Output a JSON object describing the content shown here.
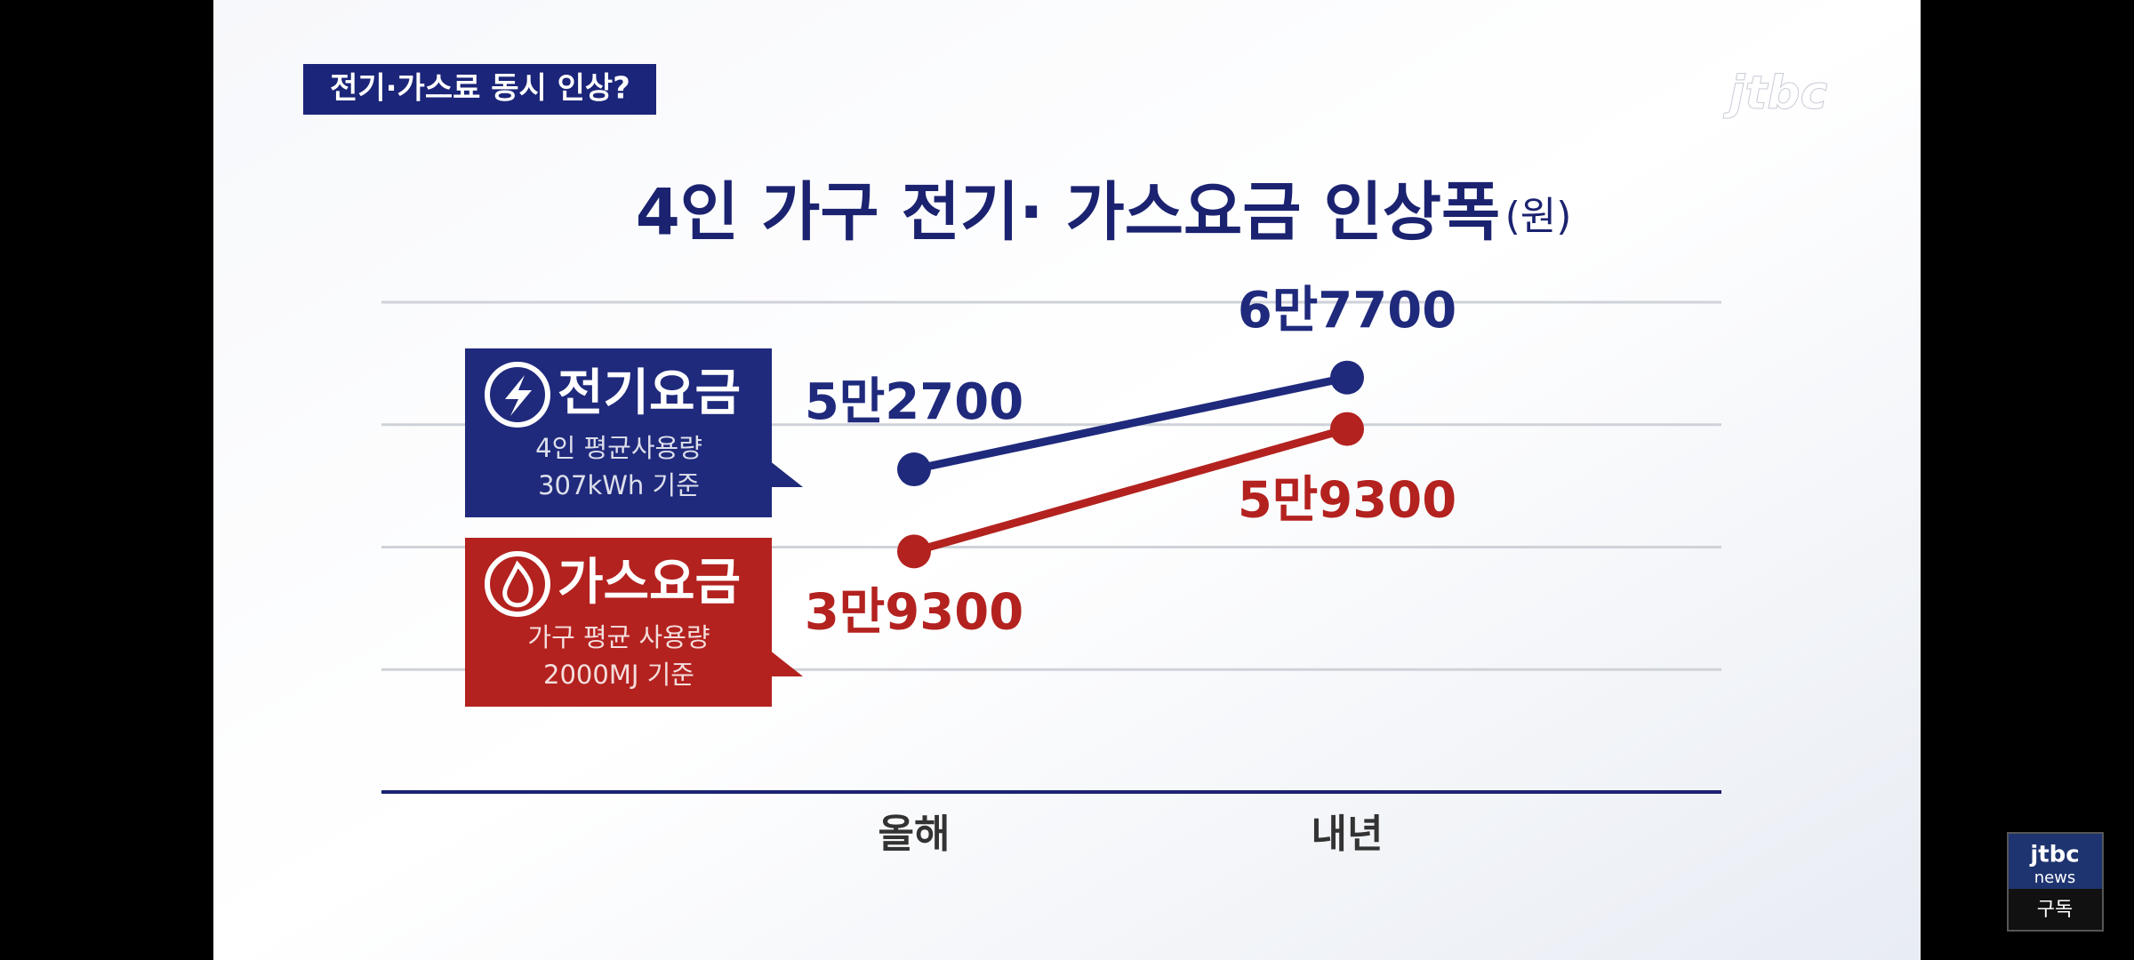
{
  "header": {
    "tag": "전기·가스료 동시 인상?",
    "logo": "jtbc"
  },
  "chart_data": {
    "type": "line",
    "title": "4인 가구 전기· 가스요금 인상폭",
    "unit": "(원)",
    "categories": [
      "올해",
      "내년"
    ],
    "series": [
      {
        "name": "전기요금",
        "color": "#1f2a7c",
        "values": [
          52700,
          67700
        ],
        "value_labels": [
          "5만2700",
          "6만7700"
        ],
        "description": [
          "4인 평균사용량",
          "307kWh 기준"
        ]
      },
      {
        "name": "가스요금",
        "color": "#b3221f",
        "values": [
          39300,
          59300
        ],
        "value_labels": [
          "3만9300",
          "5만9300"
        ],
        "description": [
          "가구 평균 사용량",
          "2000MJ 기준"
        ]
      }
    ],
    "ylim": [
      0,
      80000
    ],
    "yticks": [
      0,
      20000,
      40000,
      60000,
      80000
    ],
    "grid": true
  },
  "badge": {
    "logo": "jtbc",
    "sub": "news",
    "button": "구독"
  }
}
